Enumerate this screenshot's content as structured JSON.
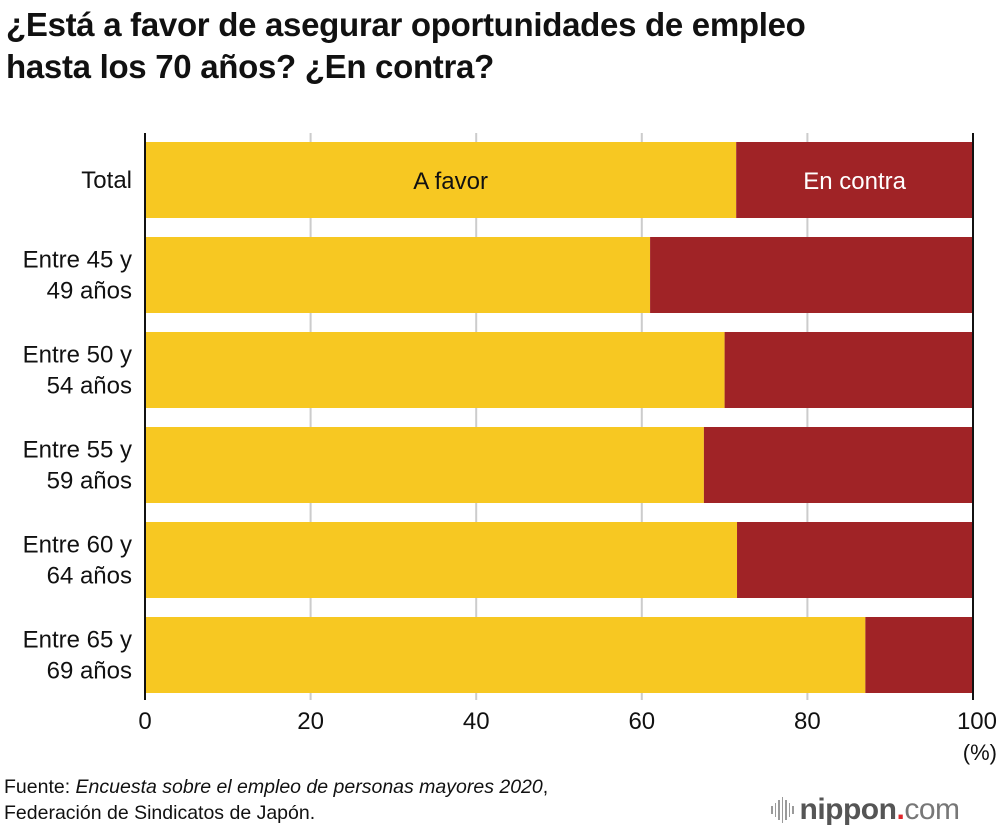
{
  "title_line1": "¿Está a favor de asegurar oportunidades de empleo",
  "title_line2": "hasta los 70 años? ¿En contra?",
  "colors": {
    "favor": "#F7C822",
    "contra": "#A02326",
    "grid": "#cccccc",
    "axis": "#111111"
  },
  "chart_data": {
    "type": "bar",
    "orientation": "horizontal",
    "stacked": true,
    "title": "¿Está a favor de asegurar oportunidades de empleo hasta los 70 años? ¿En contra?",
    "categories": [
      [
        "Total"
      ],
      [
        "Entre 45 y",
        "49 años"
      ],
      [
        "Entre 50 y",
        "54 años"
      ],
      [
        "Entre 55 y",
        "59 años"
      ],
      [
        "Entre 60 y",
        "64 años"
      ],
      [
        "Entre 65 y",
        "69 años"
      ]
    ],
    "category_labels": [
      "Total",
      "Entre 45 y 49 años",
      "Entre 50 y 54 años",
      "Entre 55 y 59 años",
      "Entre 60 y 64 años",
      "Entre 65 y 69 años"
    ],
    "series": [
      {
        "name": "A favor",
        "values": [
          71.4,
          61.0,
          70.0,
          67.5,
          71.5,
          87.0
        ]
      },
      {
        "name": "En contra",
        "values": [
          28.6,
          39.0,
          30.0,
          32.5,
          28.5,
          13.0
        ]
      }
    ],
    "xlabel": "",
    "xunit": "(%)",
    "xlim": [
      0,
      100
    ],
    "xticks": [
      0,
      20,
      40,
      60,
      80,
      100
    ],
    "grid": true,
    "legend": "in-bar labels on first row"
  },
  "source": {
    "prefix": "Fuente: ",
    "italic": "Encuesta sobre el empleo de personas mayores 2020",
    "suffix": ",",
    "line2": "Federación de Sindicatos de Japón."
  },
  "logo": {
    "part1": "nippon",
    "dot": ".",
    "part2": "com"
  }
}
